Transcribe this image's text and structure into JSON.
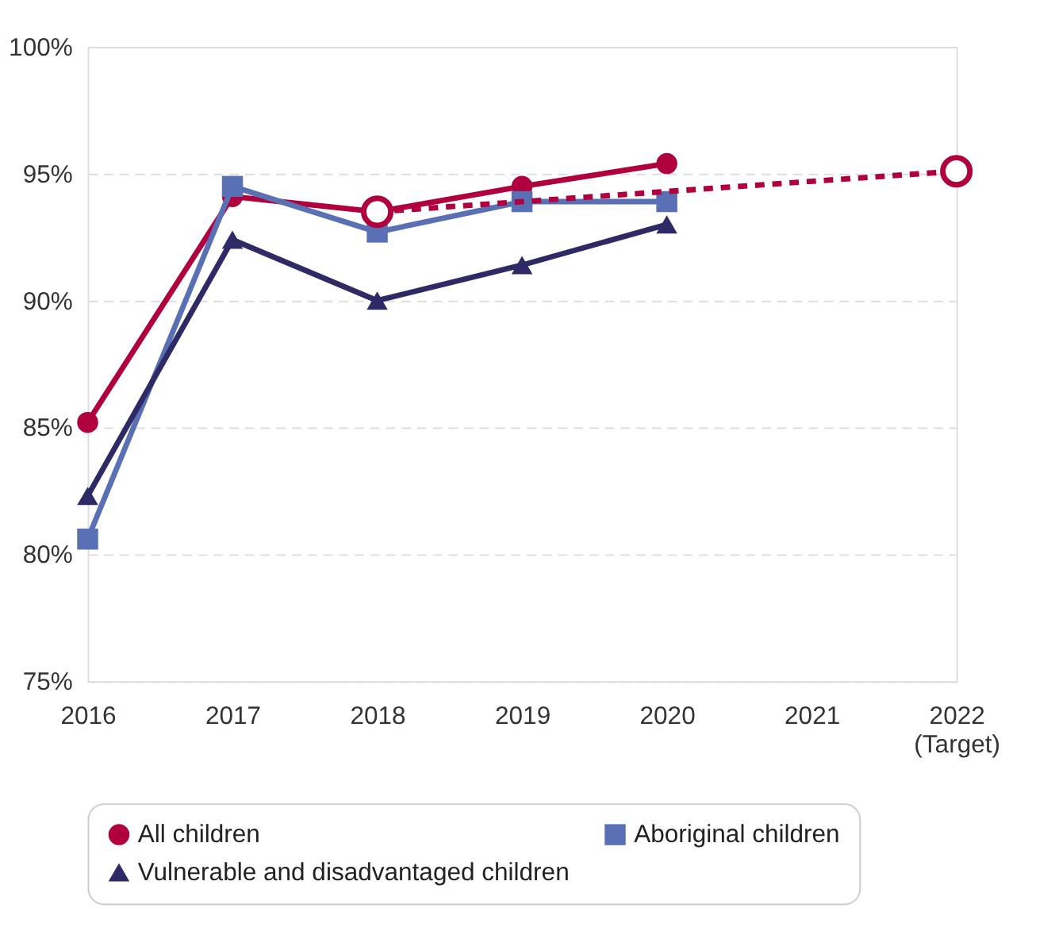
{
  "chart_data": {
    "type": "line",
    "categories": [
      "2016",
      "2017",
      "2018",
      "2019",
      "2020",
      "2021",
      "2022\n(Target)"
    ],
    "ylim": [
      75,
      100
    ],
    "yticks": [
      {
        "value": 75,
        "label": "75%"
      },
      {
        "value": 80,
        "label": "80%"
      },
      {
        "value": 85,
        "label": "85%"
      },
      {
        "value": 90,
        "label": "90%"
      },
      {
        "value": 95,
        "label": "95%"
      },
      {
        "value": 100,
        "label": "100%"
      }
    ],
    "grid": "y",
    "legend": "bottom",
    "series": [
      {
        "name": "All children",
        "color": "#b0003e",
        "marker": "circle",
        "values": [
          85.2,
          94.1,
          93.5,
          94.5,
          95.4,
          null,
          null
        ]
      },
      {
        "name": "Aboriginal children",
        "color": "#5a70b4",
        "marker": "square",
        "values": [
          80.6,
          94.5,
          92.7,
          93.9,
          93.9,
          null,
          null
        ]
      },
      {
        "name": "Vulnerable and disadvantaged children",
        "color": "#2d2a66",
        "marker": "triangle",
        "values": [
          82.3,
          92.4,
          90.0,
          91.4,
          93.0,
          null,
          null
        ]
      },
      {
        "color": "#b0003e",
        "marker": "circle",
        "line_style": "dashed",
        "values": [
          null,
          null,
          93.5,
          null,
          null,
          null,
          95.1
        ]
      }
    ]
  }
}
